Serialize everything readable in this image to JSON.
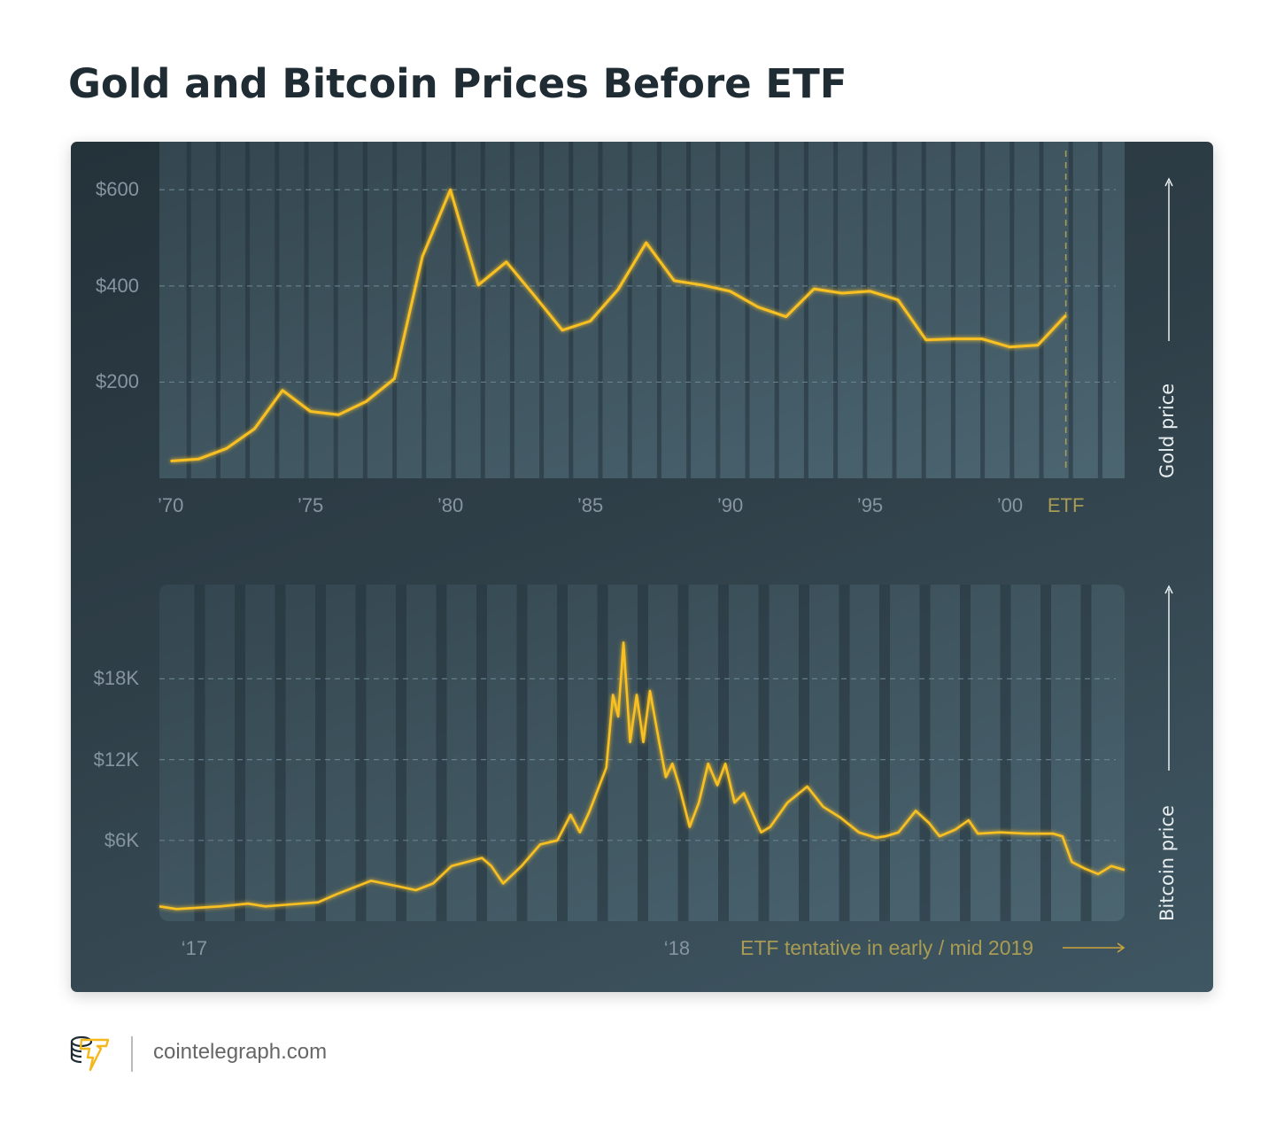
{
  "title": "Gold and Bitcoin Prices Before ETF",
  "footer": {
    "site": "cointelegraph.com",
    "logo_icon": "cointelegraph-coin-stack-logo"
  },
  "colors": {
    "line": "#f9c022",
    "etf_text": "#a89b53",
    "panel_dark": "#24323a",
    "panel_light": "#3f5763"
  },
  "chart_data": [
    {
      "type": "line",
      "ylabel": "Gold price",
      "x_unit": "year",
      "xlim": [
        1969.6,
        2004.1
      ],
      "ylim": [
        0,
        700
      ],
      "yticks": [
        {
          "value": 600,
          "label": "$600"
        },
        {
          "value": 400,
          "label": "$400"
        },
        {
          "value": 200,
          "label": "$200"
        }
      ],
      "xticks": [
        {
          "value": 1970,
          "label": "’70"
        },
        {
          "value": 1975,
          "label": "’75"
        },
        {
          "value": 1980,
          "label": "’80"
        },
        {
          "value": 1985,
          "label": "’85"
        },
        {
          "value": 1990,
          "label": "’90"
        },
        {
          "value": 1995,
          "label": "’95"
        },
        {
          "value": 2000,
          "label": "’00"
        }
      ],
      "etf_marker": {
        "value": 2002,
        "label": "ETF"
      },
      "grid": "horizontal dashed",
      "x": [
        1970,
        1971,
        1972,
        1973,
        1974,
        1975,
        1976,
        1977,
        1978,
        1979,
        1980,
        1981,
        1982,
        1983,
        1984,
        1985,
        1986,
        1987,
        1988,
        1989,
        1990,
        1991,
        1992,
        1993,
        1994,
        1995,
        1996,
        1997,
        1998,
        1999,
        2000,
        2001,
        2002
      ],
      "values": [
        36,
        40,
        62,
        103,
        183,
        139,
        132,
        160,
        207,
        461,
        600,
        402,
        450,
        380,
        308,
        327,
        393,
        490,
        411,
        402,
        389,
        356,
        336,
        394,
        385,
        389,
        371,
        288,
        290,
        290,
        273,
        277,
        339
      ]
    },
    {
      "type": "line",
      "ylabel": "Bitcoin price",
      "x_unit": "date",
      "xlim": [
        "2016-12-19",
        "2018-12-19"
      ],
      "ylim": [
        0,
        25
      ],
      "y_unit": "thousand USD",
      "yticks": [
        {
          "value": 18,
          "label": "$18K"
        },
        {
          "value": 12,
          "label": "$12K"
        },
        {
          "value": 6,
          "label": "$6K"
        }
      ],
      "xticks": [
        {
          "value": "2017-01-01",
          "label": "‘17"
        },
        {
          "value": "2018-01-01",
          "label": "‘18"
        }
      ],
      "annotation": "ETF tentative in early / mid 2019",
      "grid": "horizontal dashed",
      "x": [
        "2016-12-19",
        "2017-01-01",
        "2017-02-03",
        "2017-02-24",
        "2017-03-09",
        "2017-03-29",
        "2017-04-18",
        "2017-05-02",
        "2017-05-15",
        "2017-05-28",
        "2017-06-17",
        "2017-07-01",
        "2017-07-14",
        "2017-07-28",
        "2017-08-20",
        "2017-08-27",
        "2017-09-05",
        "2017-09-19",
        "2017-10-03",
        "2017-10-16",
        "2017-10-26",
        "2017-11-02",
        "2017-11-09",
        "2017-11-22",
        "2017-11-27",
        "2017-12-01",
        "2017-12-05",
        "2017-12-10",
        "2017-12-15",
        "2017-12-20",
        "2017-12-25",
        "2018-01-01",
        "2018-01-06",
        "2018-01-11",
        "2018-01-16",
        "2018-01-24",
        "2018-01-31",
        "2018-02-07",
        "2018-02-14",
        "2018-02-20",
        "2018-02-27",
        "2018-03-06",
        "2018-03-19",
        "2018-03-26",
        "2018-04-08",
        "2018-04-23",
        "2018-05-05",
        "2018-05-18",
        "2018-06-01",
        "2018-06-14",
        "2018-06-21",
        "2018-07-01",
        "2018-07-14",
        "2018-07-24",
        "2018-08-01",
        "2018-08-13",
        "2018-08-23",
        "2018-08-30",
        "2018-09-16",
        "2018-10-06",
        "2018-10-26",
        "2018-11-02",
        "2018-11-09",
        "2018-11-19",
        "2018-11-29",
        "2018-12-09",
        "2018-12-19"
      ],
      "values": [
        1.1,
        0.9,
        1.1,
        1.3,
        1.1,
        1.25,
        1.4,
        2.0,
        2.5,
        3.0,
        2.6,
        2.3,
        2.8,
        4.1,
        4.7,
        4.1,
        2.8,
        4.1,
        5.7,
        6.0,
        7.9,
        6.6,
        8.1,
        11.4,
        16.8,
        15.2,
        20.7,
        13.3,
        16.8,
        13.3,
        17.1,
        13.3,
        10.7,
        11.7,
        10.1,
        7.0,
        8.8,
        11.7,
        10.1,
        11.7,
        8.8,
        9.5,
        6.6,
        7.0,
        8.8,
        10.0,
        8.5,
        7.7,
        6.6,
        6.2,
        6.3,
        6.6,
        8.2,
        7.3,
        6.3,
        6.8,
        7.5,
        6.5,
        6.6,
        6.5,
        6.5,
        6.3,
        4.4,
        3.9,
        3.5,
        4.1,
        3.8
      ]
    }
  ]
}
